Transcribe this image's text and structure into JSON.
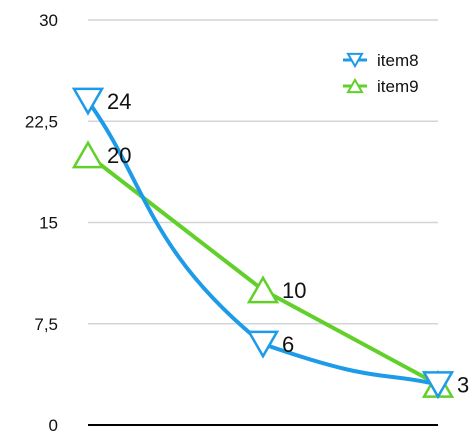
{
  "chart_data": {
    "type": "line",
    "title": "",
    "xlabel": "",
    "ylabel": "",
    "x": [
      0,
      1,
      2
    ],
    "ylim": [
      0,
      30
    ],
    "y_ticks": [
      {
        "value": 0,
        "label": "0"
      },
      {
        "value": 7.5,
        "label": "7,5"
      },
      {
        "value": 15,
        "label": "15"
      },
      {
        "value": 22.5,
        "label": "22,5"
      },
      {
        "value": 30,
        "label": "30"
      }
    ],
    "grid": true,
    "legend_position": "top-right",
    "series": [
      {
        "name": "item8",
        "values": [
          24,
          6,
          3
        ],
        "labels": [
          "24",
          "6",
          "3"
        ],
        "color": "#1e9be8",
        "marker": "triangle-down",
        "curve": "smooth"
      },
      {
        "name": "item9",
        "values": [
          20,
          10,
          3
        ],
        "labels": [
          "20",
          "10",
          ""
        ],
        "color": "#62d02b",
        "marker": "triangle-up",
        "curve": "straight"
      }
    ]
  }
}
